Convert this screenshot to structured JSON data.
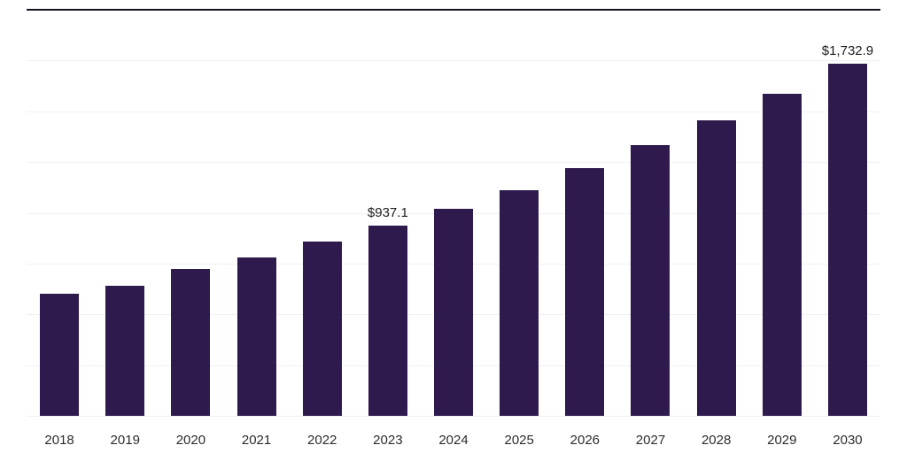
{
  "chart_data": {
    "type": "bar",
    "title": "",
    "xlabel": "",
    "ylabel": "",
    "categories": [
      "2018",
      "2019",
      "2020",
      "2021",
      "2022",
      "2023",
      "2024",
      "2025",
      "2026",
      "2027",
      "2028",
      "2029",
      "2030"
    ],
    "values": [
      603,
      641,
      722,
      781,
      858,
      937.1,
      1020,
      1110,
      1220,
      1335,
      1455,
      1585,
      1732.9
    ],
    "data_labels": [
      "",
      "",
      "",
      "",
      "",
      "$937.1",
      "",
      "",
      "",
      "",
      "",
      "",
      "$1,732.9"
    ],
    "ylim": [
      0,
      2000
    ],
    "gridlines": [
      0,
      250,
      500,
      750,
      1000,
      1250,
      1500,
      1750
    ],
    "grid_on": true,
    "legend_position": "none",
    "bar_color": "#2f1a4e",
    "grid_color": "#f1eff3",
    "top_border_color": "#15121f",
    "label_text_color": "#1c1c1c",
    "axis_text_color": "#2b2b2b"
  }
}
